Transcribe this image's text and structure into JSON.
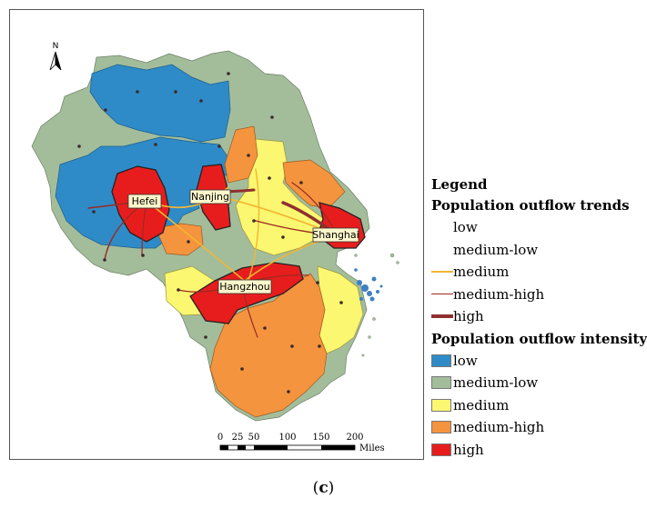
{
  "map": {
    "north_label": "N",
    "cities": [
      {
        "name": "Hefei",
        "id": "hefei"
      },
      {
        "name": "Nanjing",
        "id": "nanjing"
      },
      {
        "name": "Shanghai",
        "id": "shanghai"
      },
      {
        "name": "Hangzhou",
        "id": "hangzhou"
      }
    ],
    "scale": {
      "ticks": [
        "0",
        "25",
        "50",
        "100",
        "150",
        "200"
      ],
      "unit": "Miles"
    },
    "colors": {
      "low": "#2e8bc7",
      "medium_low": "#a3bd9b",
      "medium": "#fbf771",
      "medium_high": "#f5943e",
      "high": "#e71d1d",
      "water": "#3f80c4"
    }
  },
  "legend": {
    "title": "Legend",
    "trends_title": "Population outflow trends",
    "trends": [
      {
        "label": "low",
        "color": "#ffffff",
        "width": 0
      },
      {
        "label": "medium-low",
        "color": "#ffffff",
        "width": 0
      },
      {
        "label": "medium",
        "color": "#f2b632",
        "width": 2
      },
      {
        "label": "medium-high",
        "color": "#9b2a22",
        "width": 1.5
      },
      {
        "label": "high",
        "color": "#8f2f2f",
        "width": 4
      }
    ],
    "intensity_title": "Population outflow intensity",
    "intensity": [
      {
        "label": "low",
        "color": "#2e8bc7"
      },
      {
        "label": "medium-low",
        "color": "#a3bd9b"
      },
      {
        "label": "medium",
        "color": "#fbf771"
      },
      {
        "label": "medium-high",
        "color": "#f5943e"
      },
      {
        "label": "high",
        "color": "#e71d1d"
      }
    ]
  },
  "caption": {
    "pre": "(",
    "letter": "c",
    "post": ")"
  }
}
